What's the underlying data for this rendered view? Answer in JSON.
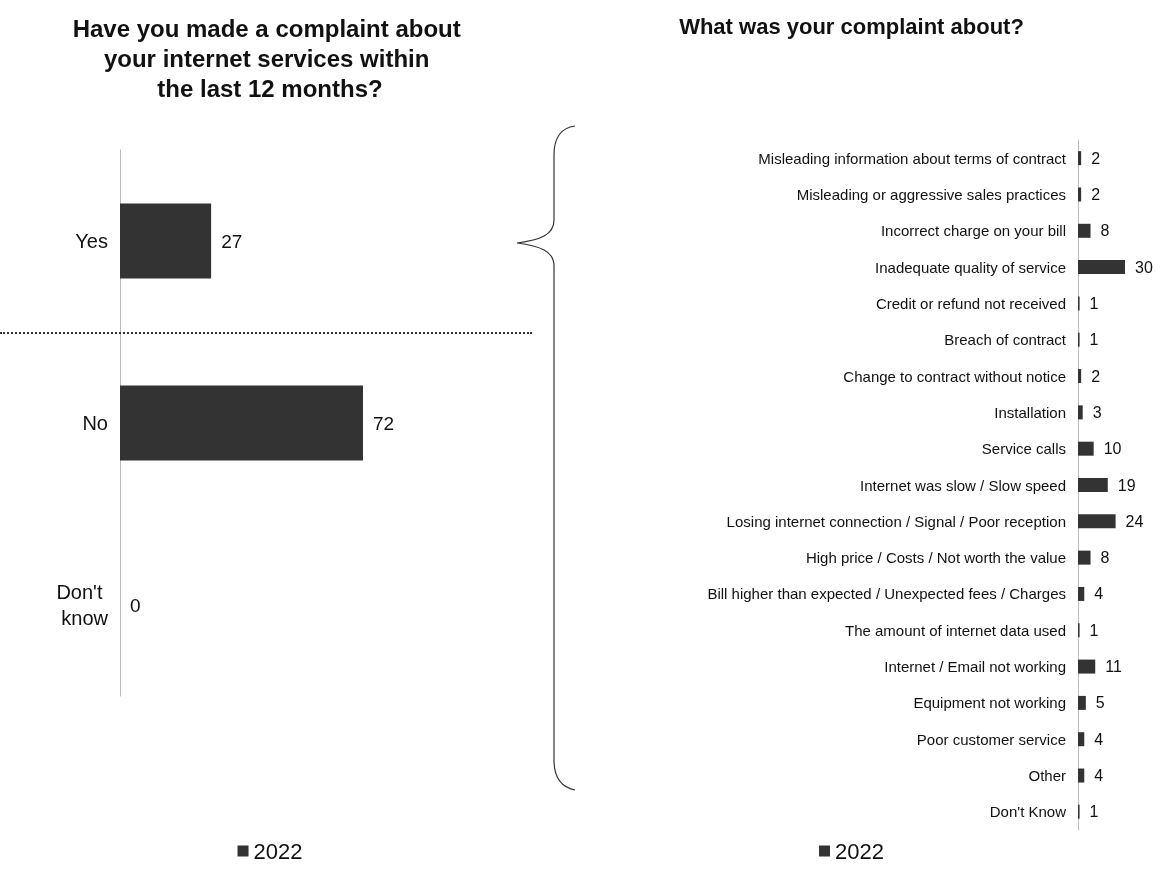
{
  "chart_data": [
    {
      "type": "bar",
      "orientation": "horizontal",
      "title": "Have you made a complaint about your internet services within the last 12 months?",
      "categories": [
        "Yes",
        "No",
        "Don't know"
      ],
      "series": [
        {
          "name": "2022",
          "color": "#333333",
          "values": [
            27,
            72,
            0
          ]
        }
      ],
      "data_labels": true,
      "legend": "bottom",
      "grid": false
    },
    {
      "type": "bar",
      "orientation": "horizontal",
      "title": "What was your complaint about?",
      "categories": [
        "Misleading information about terms of contract",
        "Misleading or aggressive sales practices",
        "Incorrect charge on your bill",
        "Inadequate quality of service",
        "Credit or refund not received",
        "Breach of contract",
        "Change to contract without notice",
        "Installation",
        "Service calls",
        "Internet was slow / Slow speed",
        "Losing internet connection / Signal / Poor reception",
        "High price / Costs / Not worth the value",
        "Bill higher than expected / Unexpected fees / Charges",
        "The amount of internet data used",
        "Internet / Email not working",
        "Equipment not working",
        "Poor customer service",
        "Other",
        "Don't Know"
      ],
      "series": [
        {
          "name": "2022",
          "color": "#333333",
          "values": [
            2,
            2,
            8,
            30,
            1,
            1,
            2,
            3,
            10,
            19,
            24,
            8,
            4,
            1,
            11,
            5,
            4,
            4,
            1
          ]
        }
      ],
      "data_labels": true,
      "legend": "bottom",
      "grid": false
    }
  ]
}
